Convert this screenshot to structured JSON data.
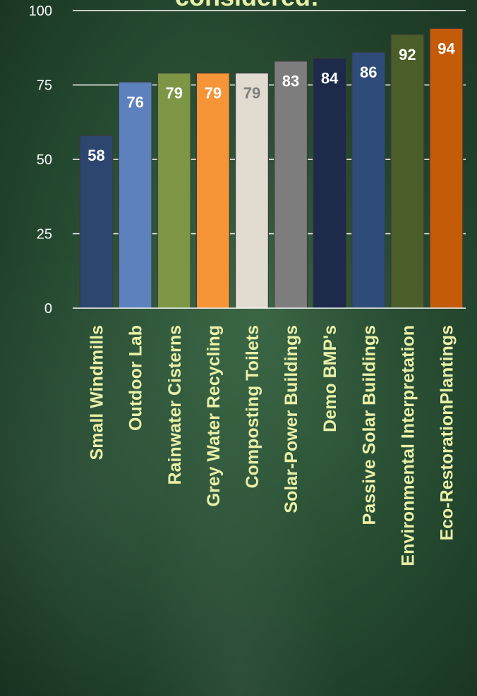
{
  "chart_data": {
    "type": "bar",
    "title": "considered:",
    "ylim": [
      0,
      100
    ],
    "yticks": [
      "0",
      "25",
      "50",
      "75",
      "100"
    ],
    "grid": true,
    "categories": [
      "Small Windmills",
      "Outdoor Lab",
      "Rainwater Cisterns",
      "Grey Water Recycling",
      "Composting Toilets",
      "Solar-Power Buildings",
      "Demo BMP's",
      "Passive Solar Buildings",
      "Environmental Interpretation",
      "Eco-RestorationPlantings"
    ],
    "values": [
      58,
      76,
      79,
      79,
      79,
      83,
      84,
      86,
      92,
      94
    ],
    "bar_colors": [
      "#2c4670",
      "#5d81bd",
      "#7d9645",
      "#f69438",
      "#e2dbd0",
      "#7d7d7d",
      "#1e2a4a",
      "#2f4b7a",
      "#4b5e29",
      "#c45b09"
    ],
    "label_colors": [
      "#ffffff",
      "#ffffff",
      "#ffffff",
      "#ffffff",
      "#7f7f7f",
      "#ffffff",
      "#ffffff",
      "#ffffff",
      "#ffffff",
      "#ffffff"
    ],
    "data_labels": [
      "58",
      "76",
      "79",
      "79",
      "79",
      "83",
      "84",
      "86",
      "92",
      "94"
    ]
  },
  "theme": {
    "title_color": "#e9f0a8",
    "category_color": "#e9f0a8",
    "axis_color": "#ffffff",
    "grid_color": "#ffffff"
  }
}
